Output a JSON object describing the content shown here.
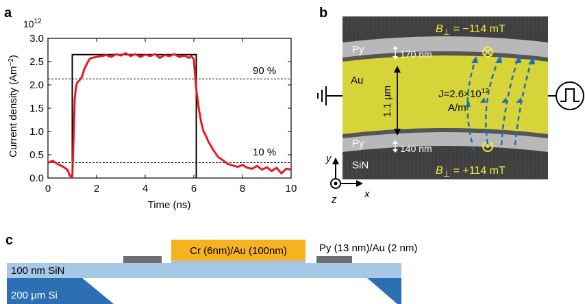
{
  "panel_labels": {
    "a": "a",
    "b": "b",
    "c": "c"
  },
  "panel_a": {
    "y_exponent": "10",
    "y_exponent_power": "12",
    "ylabel": "Current density (Am",
    "ylabel_sup": "−2",
    "ylabel_end": ")",
    "xlabel": "Time (ns)",
    "line_90": "90 %",
    "line_10": "10 %",
    "colors": {
      "measured": "#e8191f",
      "ideal": "#000000"
    }
  },
  "chart_data": {
    "type": "line",
    "xlabel": "Time (ns)",
    "ylabel": "Current density (Am−2)",
    "y_scale_factor": "10^12",
    "xlim": [
      0,
      10
    ],
    "ylim": [
      0,
      3.0
    ],
    "xticks": [
      "0",
      "2",
      "4",
      "6",
      "8",
      "10"
    ],
    "yticks": [
      "0.0",
      "0.5",
      "1.0",
      "1.5",
      "2.0",
      "2.5",
      "3.0"
    ],
    "reference_lines": [
      {
        "label": "90 %",
        "y": 2.13
      },
      {
        "label": "10 %",
        "y": 0.33
      }
    ],
    "series": [
      {
        "x": [
          0,
          0.2,
          0.4,
          0.6,
          0.8,
          0.9,
          1.0,
          1.05,
          1.1,
          1.15,
          1.2,
          1.3,
          1.4,
          1.5,
          1.6,
          1.7,
          1.8,
          2.0,
          2.2,
          2.4,
          2.6,
          2.8,
          3.0,
          3.2,
          3.4,
          3.6,
          3.8,
          4.0,
          4.2,
          4.4,
          4.6,
          4.8,
          5.0,
          5.2,
          5.4,
          5.6,
          5.8,
          5.9,
          6.0,
          6.05,
          6.1,
          6.2,
          6.3,
          6.4,
          6.5,
          6.6,
          6.8,
          7.0,
          7.2,
          7.4,
          7.6,
          7.8,
          8.0,
          8.2,
          8.4,
          8.6,
          8.8,
          9.0,
          9.2,
          9.4,
          9.6,
          9.8,
          10.0
        ],
        "values": [
          0.33,
          0.37,
          0.3,
          0.25,
          0.18,
          0.05,
          0.02,
          0.8,
          1.7,
          1.95,
          2.05,
          2.1,
          2.18,
          2.35,
          2.45,
          2.55,
          2.58,
          2.6,
          2.62,
          2.64,
          2.6,
          2.66,
          2.63,
          2.68,
          2.62,
          2.66,
          2.6,
          2.65,
          2.62,
          2.66,
          2.58,
          2.64,
          2.62,
          2.66,
          2.6,
          2.63,
          2.58,
          2.62,
          2.55,
          2.2,
          1.9,
          1.5,
          1.2,
          1.0,
          0.9,
          0.78,
          0.6,
          0.45,
          0.38,
          0.3,
          0.27,
          0.24,
          0.28,
          0.22,
          0.2,
          0.26,
          0.18,
          0.23,
          0.15,
          0.22,
          0.1,
          0.2,
          0.18
        ]
      },
      {
        "x": [
          1.0,
          1.0,
          6.1,
          6.1
        ],
        "values": [
          0,
          2.65,
          2.65,
          0
        ]
      }
    ]
  },
  "panel_b": {
    "b_top_label": "B",
    "b_top_sub": "⊥",
    "b_top_value": " = −114 mT",
    "b_bot_label": "B",
    "b_bot_sub": "⊥",
    "b_bot_value": " = +114 mT",
    "py_top": "Py",
    "py_bot": "Py",
    "au": "Au",
    "sin": "SiN",
    "w_top": "170 nm",
    "w_bot": "140 nm",
    "width": "1.1 µm",
    "j_line1": "J=2.6×10",
    "j_exp": "12",
    "j_line2": "A/m",
    "j_line2_sup": "2",
    "axis_y": "y",
    "axis_x": "x",
    "axis_z": "z",
    "colors": {
      "highlight": "#f2ee3a",
      "field_lines": "#1d6fb8"
    }
  },
  "panel_c": {
    "electrode": "Cr (6nm)/Au (100nm)",
    "py_stack": "Py (13 nm)/Au (2 nm)",
    "sin": "100 nm SiN",
    "si": "200 µm Si",
    "colors": {
      "electrode": "#f7b21f",
      "sin": "#a6c7e6",
      "si": "#2c6fb3",
      "py": "#6d6d6d"
    }
  }
}
